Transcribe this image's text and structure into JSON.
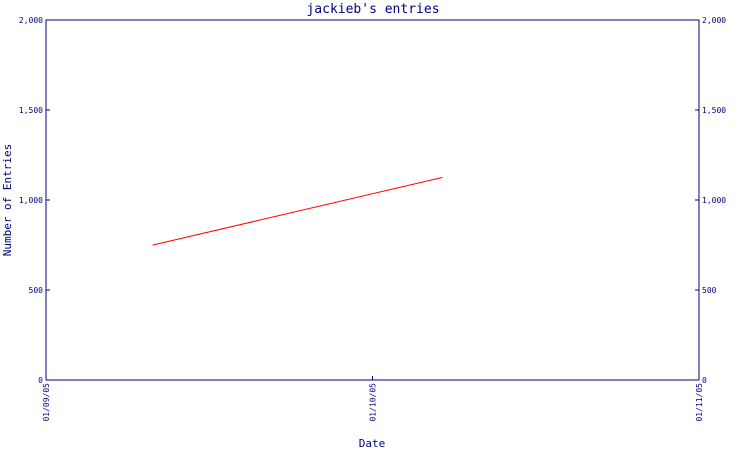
{
  "chart_data": {
    "type": "line",
    "title": "jackieb's entries",
    "xlabel": "Date",
    "ylabel": "Number of Entries",
    "ylim": [
      0,
      2000
    ],
    "y_ticks": [
      0,
      500,
      1000,
      1500,
      2000
    ],
    "y_tick_labels": [
      "0",
      "500",
      "1,000",
      "1,500",
      "2,000"
    ],
    "x_ticks": [
      "01/09/05",
      "01/10/05",
      "01/11/05"
    ],
    "x_range": [
      "01/09/05",
      "01/11/05"
    ],
    "series": [
      {
        "color": "#ff0000",
        "points": [
          {
            "x": "01/09/05 + 0.34 interval",
            "date": "2005-09-11",
            "y": 750
          },
          {
            "x": "01/10/05 + 0.23 interval",
            "date": "2005-10-08",
            "y": 1125
          }
        ]
      }
    ],
    "grid": false,
    "axis_color": "#000080"
  }
}
